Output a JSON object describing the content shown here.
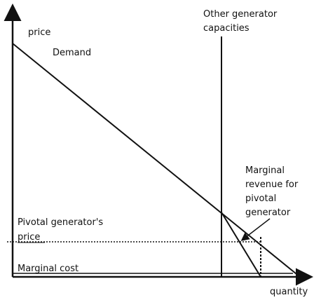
{
  "axes": {
    "y_label": "price",
    "x_label": "quantity"
  },
  "curves": {
    "demand": "Demand",
    "other_capacities": [
      "Other generator",
      "capacities"
    ],
    "marginal_revenue": [
      "Marginal",
      "revenue for",
      "pivotal",
      "generator"
    ],
    "pivotal_price": [
      "Pivotal generator's",
      "price"
    ],
    "marginal_cost": "Marginal cost"
  }
}
